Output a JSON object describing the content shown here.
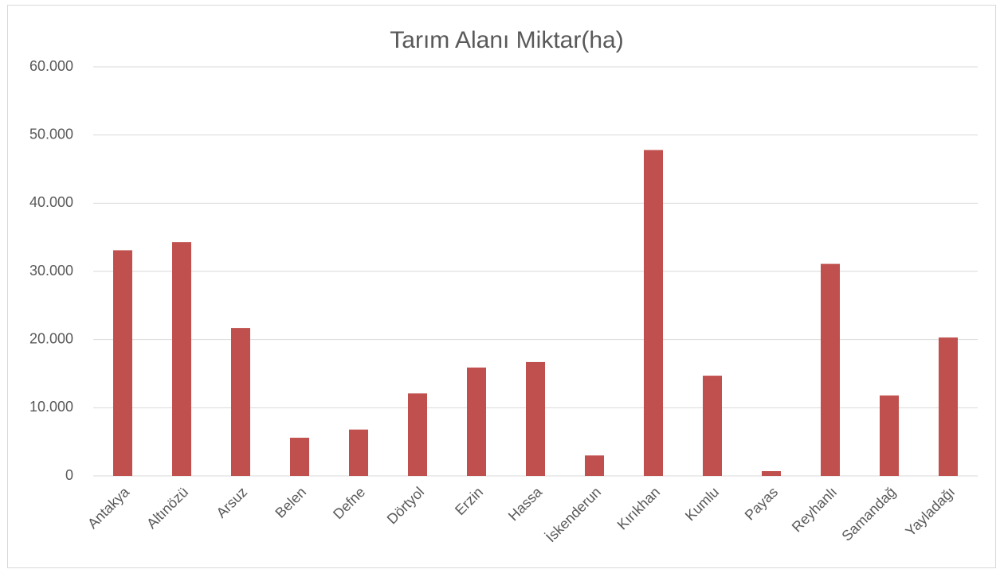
{
  "chart_data": {
    "type": "bar",
    "title": "Tarım Alanı Miktar(ha)",
    "categories": [
      "Antakya",
      "Altınözü",
      "Arsuz",
      "Belen",
      "Defne",
      "Dörtyol",
      "Erzin",
      "Hassa",
      "İskenderun",
      "Kırıkhan",
      "Kumlu",
      "Payas",
      "Reyhanlı",
      "Samandağ",
      "Yayladağı"
    ],
    "values": [
      33100,
      34300,
      21700,
      5600,
      6800,
      12100,
      15900,
      16700,
      3000,
      47800,
      14700,
      700,
      31100,
      11800,
      20300
    ],
    "color": "#c0504d",
    "ylim": [
      0,
      60000
    ],
    "yticks": [
      0,
      {
        "value": 10000,
        "label": "10.000"
      },
      {
        "value": 20000,
        "label": "20.000"
      },
      {
        "value": 30000,
        "label": "30.000"
      },
      {
        "value": 40000,
        "label": "40.000"
      },
      {
        "value": 50000,
        "label": "50.000"
      },
      {
        "value": 60000,
        "label": "60.000"
      }
    ],
    "grid": true
  }
}
